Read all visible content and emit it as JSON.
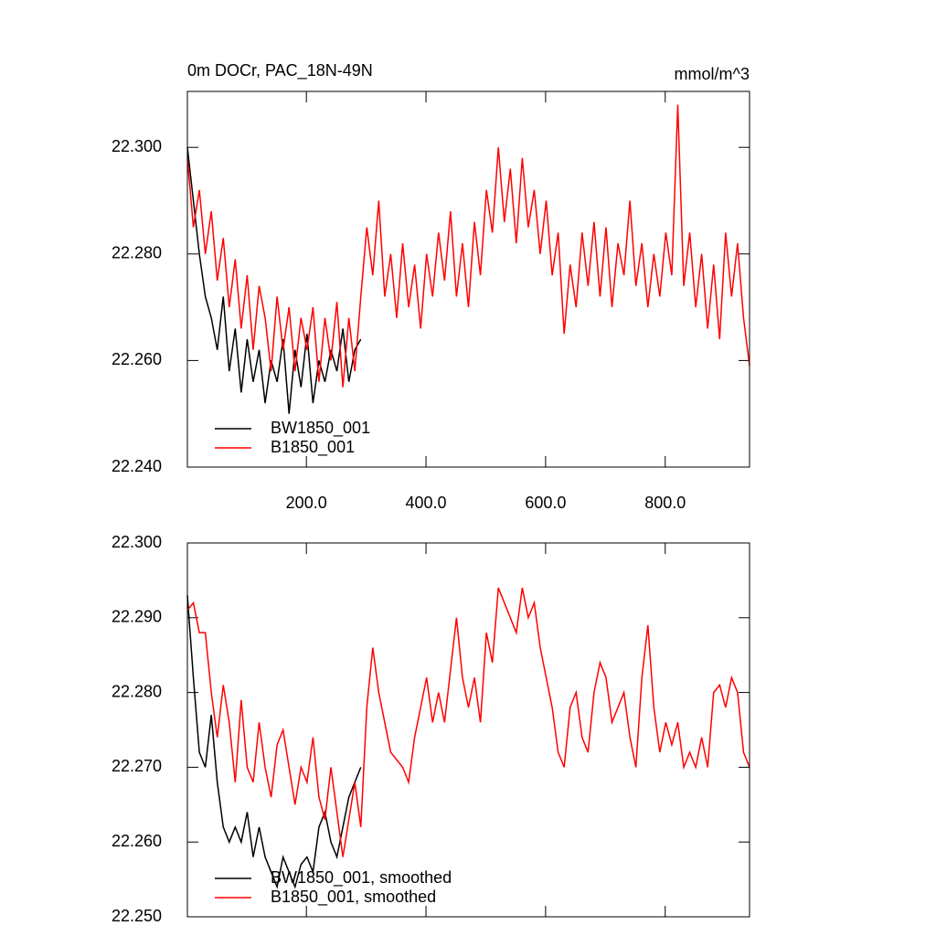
{
  "chart_data": [
    {
      "type": "line",
      "title": "0m DOCr, PAC_18N-49N",
      "units": "mmol/m^3",
      "xlim": [
        1,
        941
      ],
      "ylim": [
        22.24,
        22.3105
      ],
      "xticks": [
        {
          "value": 200,
          "label": "200.0"
        },
        {
          "value": 400,
          "label": "400.0"
        },
        {
          "value": 600,
          "label": "600.0"
        },
        {
          "value": 800,
          "label": "800.0"
        }
      ],
      "yticks": [
        {
          "value": 22.24,
          "label": "22.240"
        },
        {
          "value": 22.26,
          "label": "22.260"
        },
        {
          "value": 22.28,
          "label": "22.280"
        },
        {
          "value": 22.3,
          "label": "22.300"
        }
      ],
      "series": [
        {
          "name": "BW1850_001",
          "color": "#000000",
          "x": [
            1,
            11,
            21,
            31,
            41,
            51,
            61,
            71,
            81,
            91,
            101,
            111,
            121,
            131,
            141,
            151,
            161,
            171,
            181,
            191,
            201,
            211,
            221,
            231,
            241,
            251,
            261,
            271,
            281,
            291
          ],
          "values": [
            22.3,
            22.29,
            22.28,
            22.272,
            22.268,
            22.262,
            22.272,
            22.258,
            22.266,
            22.254,
            22.264,
            22.256,
            22.262,
            22.252,
            22.26,
            22.256,
            22.264,
            22.25,
            22.262,
            22.255,
            22.265,
            22.252,
            22.26,
            22.256,
            22.262,
            22.258,
            22.266,
            22.256,
            22.262,
            22.264
          ]
        },
        {
          "name": "B1850_001",
          "color": "#ff0000",
          "x": [
            1,
            11,
            21,
            31,
            41,
            51,
            61,
            71,
            81,
            91,
            101,
            111,
            121,
            131,
            141,
            151,
            161,
            171,
            181,
            191,
            201,
            211,
            221,
            231,
            241,
            251,
            261,
            271,
            281,
            291,
            301,
            311,
            321,
            331,
            341,
            351,
            361,
            371,
            381,
            391,
            401,
            411,
            421,
            431,
            441,
            451,
            461,
            471,
            481,
            491,
            501,
            511,
            521,
            531,
            541,
            551,
            561,
            571,
            581,
            591,
            601,
            611,
            621,
            631,
            641,
            651,
            661,
            671,
            681,
            691,
            701,
            711,
            721,
            731,
            741,
            751,
            761,
            771,
            781,
            791,
            801,
            811,
            821,
            831,
            841,
            851,
            861,
            871,
            881,
            891,
            901,
            911,
            921,
            931,
            941
          ],
          "values": [
            22.298,
            22.285,
            22.292,
            22.28,
            22.288,
            22.275,
            22.283,
            22.27,
            22.279,
            22.266,
            22.276,
            22.262,
            22.274,
            22.268,
            22.258,
            22.272,
            22.262,
            22.27,
            22.258,
            22.268,
            22.262,
            22.27,
            22.256,
            22.268,
            22.26,
            22.271,
            22.255,
            22.268,
            22.258,
            22.272,
            22.285,
            22.276,
            22.29,
            22.272,
            22.28,
            22.268,
            22.282,
            22.27,
            22.278,
            22.266,
            22.28,
            22.272,
            22.284,
            22.275,
            22.288,
            22.272,
            22.282,
            22.27,
            22.286,
            22.276,
            22.292,
            22.284,
            22.3,
            22.286,
            22.296,
            22.282,
            22.298,
            22.285,
            22.292,
            22.28,
            22.29,
            22.276,
            22.284,
            22.265,
            22.278,
            22.27,
            22.284,
            22.274,
            22.286,
            22.272,
            22.285,
            22.27,
            22.282,
            22.276,
            22.29,
            22.274,
            22.282,
            22.27,
            22.28,
            22.272,
            22.284,
            22.276,
            22.308,
            22.274,
            22.284,
            22.27,
            22.28,
            22.266,
            22.278,
            22.264,
            22.284,
            22.272,
            22.282,
            22.268,
            22.259
          ]
        }
      ]
    },
    {
      "type": "line",
      "xlim": [
        1,
        941
      ],
      "ylim": [
        22.25,
        22.3
      ],
      "xticks": [
        200,
        400,
        600,
        800
      ],
      "yticks": [
        {
          "value": 22.25,
          "label": "22.250"
        },
        {
          "value": 22.26,
          "label": "22.260"
        },
        {
          "value": 22.27,
          "label": "22.270"
        },
        {
          "value": 22.28,
          "label": "22.280"
        },
        {
          "value": 22.29,
          "label": "22.290"
        },
        {
          "value": 22.3,
          "label": "22.300"
        }
      ],
      "series": [
        {
          "name": "BW1850_001, smoothed",
          "color": "#000000",
          "x": [
            1,
            11,
            21,
            31,
            41,
            51,
            61,
            71,
            81,
            91,
            101,
            111,
            121,
            131,
            141,
            151,
            161,
            171,
            181,
            191,
            201,
            211,
            221,
            231,
            241,
            251,
            261,
            271,
            281,
            291
          ],
          "values": [
            22.293,
            22.282,
            22.272,
            22.27,
            22.277,
            22.268,
            22.262,
            22.26,
            22.262,
            22.26,
            22.264,
            22.258,
            22.262,
            22.258,
            22.256,
            22.254,
            22.258,
            22.256,
            22.254,
            22.257,
            22.258,
            22.256,
            22.262,
            22.264,
            22.26,
            22.258,
            22.262,
            22.266,
            22.268,
            22.27
          ]
        },
        {
          "name": "B1850_001, smoothed",
          "color": "#ff0000",
          "x": [
            1,
            11,
            21,
            31,
            41,
            51,
            61,
            71,
            81,
            91,
            101,
            111,
            121,
            131,
            141,
            151,
            161,
            171,
            181,
            191,
            201,
            211,
            221,
            231,
            241,
            251,
            261,
            271,
            281,
            291,
            301,
            311,
            321,
            331,
            341,
            351,
            361,
            371,
            381,
            391,
            401,
            411,
            421,
            431,
            441,
            451,
            461,
            471,
            481,
            491,
            501,
            511,
            521,
            531,
            541,
            551,
            561,
            571,
            581,
            591,
            601,
            611,
            621,
            631,
            641,
            651,
            661,
            671,
            681,
            691,
            701,
            711,
            721,
            731,
            741,
            751,
            761,
            771,
            781,
            791,
            801,
            811,
            821,
            831,
            841,
            851,
            861,
            871,
            881,
            891,
            901,
            911,
            921,
            931,
            941
          ],
          "values": [
            22.291,
            22.292,
            22.288,
            22.288,
            22.28,
            22.274,
            22.281,
            22.276,
            22.268,
            22.279,
            22.27,
            22.268,
            22.276,
            22.27,
            22.266,
            22.273,
            22.275,
            22.27,
            22.265,
            22.27,
            22.268,
            22.274,
            22.266,
            22.263,
            22.27,
            22.264,
            22.258,
            22.263,
            22.268,
            22.262,
            22.278,
            22.286,
            22.28,
            22.276,
            22.272,
            22.271,
            22.27,
            22.268,
            22.274,
            22.278,
            22.282,
            22.276,
            22.28,
            22.276,
            22.283,
            22.29,
            22.282,
            22.278,
            22.282,
            22.276,
            22.288,
            22.284,
            22.294,
            22.292,
            22.29,
            22.288,
            22.294,
            22.29,
            22.292,
            22.286,
            22.282,
            22.278,
            22.272,
            22.27,
            22.278,
            22.28,
            22.274,
            22.272,
            22.28,
            22.284,
            22.282,
            22.276,
            22.278,
            22.28,
            22.274,
            22.27,
            22.282,
            22.289,
            22.278,
            22.272,
            22.276,
            22.273,
            22.276,
            22.27,
            22.272,
            22.27,
            22.274,
            22.27,
            22.28,
            22.281,
            22.278,
            22.282,
            22.28,
            22.272,
            22.27
          ]
        }
      ]
    }
  ]
}
